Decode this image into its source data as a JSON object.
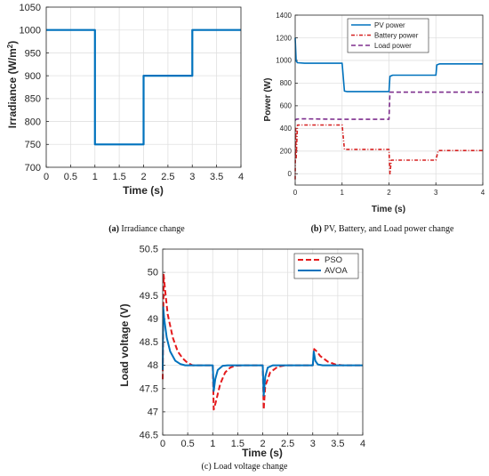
{
  "chart_data": [
    {
      "id": "a",
      "type": "line",
      "xlabel": "Time (s)",
      "ylabel": "Irradiance (W/m",
      "ylabel_sup": "2",
      "ylabel_close": ")",
      "xlim": [
        0,
        4
      ],
      "ylim": [
        700,
        1050
      ],
      "xticks": [
        "0",
        "0.5",
        "1",
        "1.5",
        "2",
        "2.5",
        "3",
        "3.5",
        "4"
      ],
      "yticks": [
        "700",
        "750",
        "800",
        "850",
        "900",
        "950",
        "1000",
        "1050"
      ],
      "grid": true,
      "series": [
        {
          "color": "#0072BD",
          "dash": "solid",
          "x": [
            0,
            1,
            1,
            2,
            2,
            3,
            3,
            4
          ],
          "y": [
            1000,
            1000,
            750,
            750,
            900,
            900,
            1000,
            1000
          ]
        }
      ],
      "caption_label": "(a)",
      "caption_text": " Irradiance change"
    },
    {
      "id": "b",
      "type": "line",
      "xlabel": "Time (s)",
      "ylabel": "Power (W)",
      "xlim": [
        0,
        4
      ],
      "ylim": [
        -100,
        1400
      ],
      "xticks": [
        "0",
        "1",
        "2",
        "3",
        "4"
      ],
      "yticks": [
        "0",
        "200",
        "400",
        "600",
        "800",
        "1000",
        "1200",
        "1400"
      ],
      "grid": true,
      "legend_position": "top-right",
      "series": [
        {
          "name": "PV power",
          "color": "#0072BD",
          "dash": "solid",
          "x": [
            0,
            0.02,
            0.05,
            0.2,
            1.0,
            1.05,
            1.1,
            2.0,
            2.02,
            2.08,
            3.0,
            3.02,
            3.08,
            4.0
          ],
          "y": [
            1200,
            995,
            980,
            975,
            975,
            730,
            725,
            725,
            860,
            870,
            870,
            960,
            970,
            970
          ]
        },
        {
          "name": "Battery power",
          "color": "#D62020",
          "dash": "4,2,1,2",
          "x": [
            0,
            0.01,
            0.02,
            0.05,
            0.2,
            1.0,
            1.05,
            1.1,
            2.0,
            2.02,
            2.05,
            2.1,
            3.0,
            3.05,
            4.0
          ],
          "y": [
            -50,
            400,
            140,
            430,
            430,
            430,
            215,
            215,
            215,
            0,
            120,
            120,
            120,
            205,
            205
          ]
        },
        {
          "name": "Load power",
          "color": "#7E2F8E",
          "dash": "5,3",
          "x": [
            0,
            0.02,
            0.1,
            1.0,
            1.05,
            2.0,
            2.02,
            2.1,
            4.0
          ],
          "y": [
            470,
            480,
            485,
            480,
            480,
            480,
            720,
            720,
            720
          ]
        }
      ],
      "caption_label": "(b)",
      "caption_text": " PV, Battery, and Load power change"
    },
    {
      "id": "c",
      "type": "line",
      "xlabel": "Time (s)",
      "ylabel": "Load voltage (V)",
      "xlim": [
        0,
        4
      ],
      "ylim": [
        46.5,
        50.5
      ],
      "xticks": [
        "0",
        "0.5",
        "1",
        "1.5",
        "2",
        "2.5",
        "3",
        "3.5",
        "4"
      ],
      "yticks": [
        "46.5",
        "47",
        "47.5",
        "48",
        "48.5",
        "49",
        "49.5",
        "50",
        "50.5"
      ],
      "grid": true,
      "legend_position": "top-right",
      "series": [
        {
          "name": "PSO",
          "color": "#E41A1C",
          "dash": "6,3",
          "x": [
            0,
            0.02,
            0.05,
            0.1,
            0.2,
            0.3,
            0.4,
            0.5,
            0.6,
            1.0,
            1.02,
            1.06,
            1.15,
            1.25,
            1.35,
            1.45,
            1.6,
            2.0,
            2.02,
            2.05,
            2.15,
            2.3,
            2.45,
            2.6,
            3.0,
            3.03,
            3.08,
            3.15,
            3.3,
            3.45,
            3.6,
            4.0
          ],
          "y": [
            47.7,
            49.95,
            49.6,
            49.1,
            48.6,
            48.3,
            48.15,
            48.05,
            48.0,
            48.0,
            47.05,
            47.2,
            47.6,
            47.85,
            47.95,
            47.99,
            48.0,
            48.0,
            47.05,
            47.55,
            47.85,
            47.97,
            48.0,
            48.0,
            48.0,
            48.35,
            48.3,
            48.2,
            48.08,
            48.02,
            48.0,
            48.0
          ]
        },
        {
          "name": "AVOA",
          "color": "#0072BD",
          "dash": "solid",
          "x": [
            0,
            0.01,
            0.03,
            0.08,
            0.15,
            0.25,
            0.35,
            0.45,
            1.0,
            1.02,
            1.05,
            1.1,
            1.2,
            1.3,
            2.0,
            2.02,
            2.05,
            2.1,
            2.2,
            3.0,
            3.02,
            3.05,
            3.1,
            3.2,
            4.0
          ],
          "y": [
            47.9,
            49.25,
            49.0,
            48.6,
            48.3,
            48.1,
            48.03,
            48.0,
            48.0,
            47.45,
            47.7,
            47.9,
            47.99,
            48.0,
            48.0,
            47.35,
            47.75,
            47.95,
            48.0,
            48.0,
            48.3,
            48.1,
            48.02,
            48.0,
            48.0
          ]
        }
      ],
      "caption_label": "(c)",
      "caption_text": " Load voltage change"
    }
  ]
}
